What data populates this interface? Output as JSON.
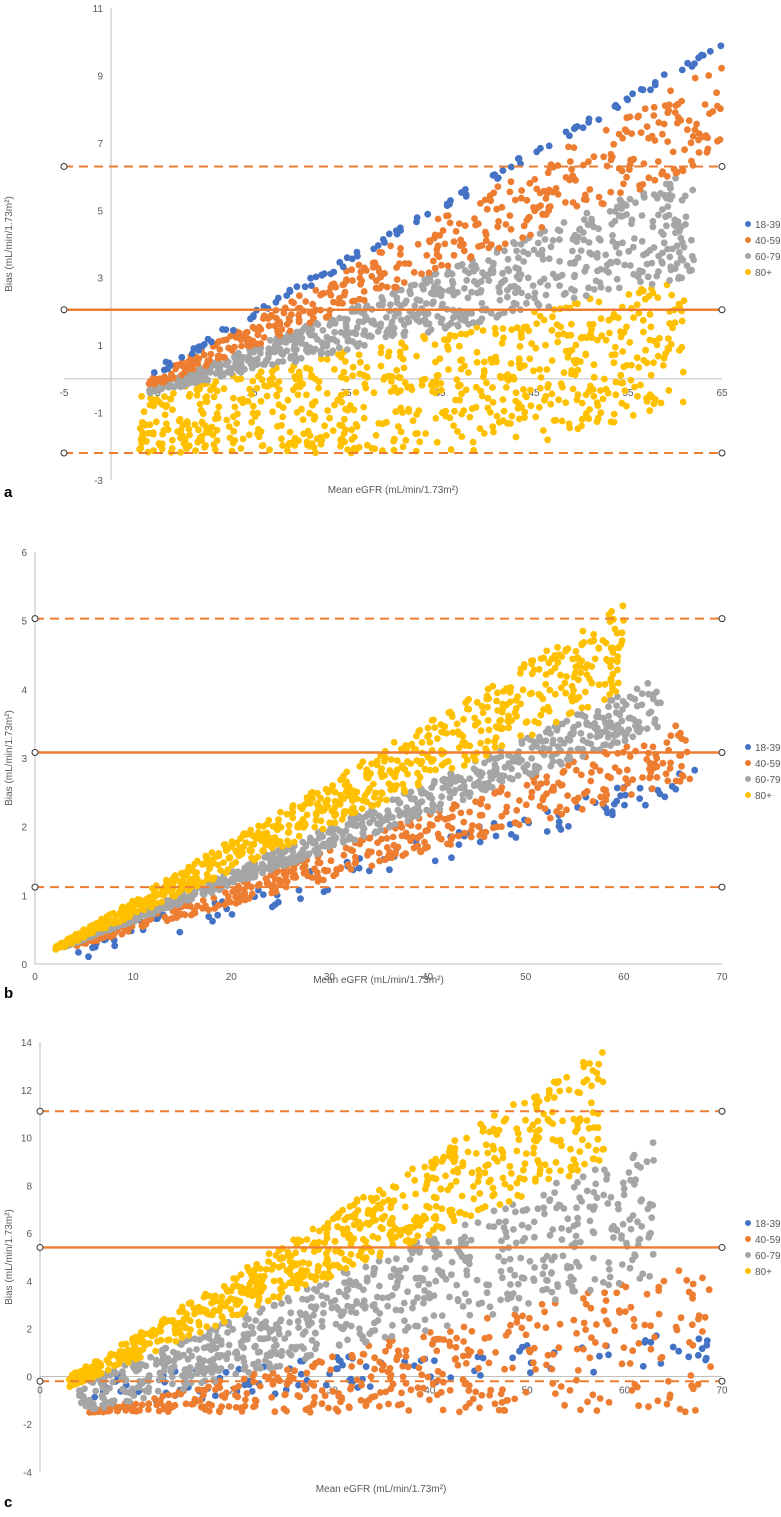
{
  "colors": {
    "s18_39": "#4472c4",
    "s40_59": "#ed7d31",
    "s60_79": "#a5a5a5",
    "s80": "#ffc000",
    "mean_line": "#ed7d31",
    "loa_line": "#ed7d31",
    "axis": "#bfbfbf",
    "text": "#595959"
  },
  "chart_data": [
    {
      "type": "scatter",
      "panel_label": "a",
      "xlabel": "Mean eGFR (mL/min/1.73m²)",
      "ylabel": "Bias (mL/min/1.73m²)",
      "xlim": [
        -5,
        65
      ],
      "ylim": [
        -3,
        11
      ],
      "xticks": [
        "-5",
        "5",
        "15",
        "25",
        "35",
        "45",
        "55",
        "65"
      ],
      "yticks": [
        "-3",
        "-1",
        "1",
        "3",
        "5",
        "7",
        "9",
        "11"
      ],
      "mean_bias": 2.05,
      "upper_loa": 6.3,
      "lower_loa": -2.2,
      "legend": [
        "18-39",
        "40-59",
        "60-79",
        "80+"
      ],
      "series": [
        {
          "name": "18-39",
          "x_range": [
            4,
            65
          ],
          "slope_ref": [
            [
              4,
              0.1
            ],
            [
              65,
              9.9
            ]
          ]
        },
        {
          "name": "40-59",
          "x_range": [
            4,
            65
          ],
          "slope_ref": [
            [
              4,
              0.0
            ],
            [
              65,
              9.4
            ]
          ]
        },
        {
          "name": "60-79",
          "x_range": [
            4,
            62
          ],
          "slope_ref": [
            [
              4,
              -0.3
            ],
            [
              62,
              6.2
            ]
          ]
        },
        {
          "name": "80+",
          "x_range": [
            3,
            61
          ],
          "slope_ref": [
            [
              3,
              -0.5
            ],
            [
              61,
              3.0
            ]
          ]
        }
      ]
    },
    {
      "type": "scatter",
      "panel_label": "b",
      "xlabel": "Mean eGFR  (mL/min/1.73m²)",
      "ylabel": "Bias (mL/min/1.73m²)",
      "xlim": [
        0,
        70
      ],
      "ylim": [
        0,
        6
      ],
      "xticks": [
        "0",
        "10",
        "20",
        "30",
        "40",
        "50",
        "60",
        "70"
      ],
      "yticks": [
        "0",
        "1",
        "2",
        "3",
        "4",
        "5",
        "6"
      ],
      "mean_bias": 3.08,
      "upper_loa": 5.03,
      "lower_loa": 1.12,
      "legend": [
        "18-39",
        "40-59",
        "60-79",
        "80+"
      ],
      "series": [
        {
          "name": "18-39",
          "x_range": [
            4,
            68
          ],
          "slope_ref": [
            [
              4,
              0.25
            ],
            [
              68,
              2.7
            ]
          ]
        },
        {
          "name": "40-59",
          "x_range": [
            4,
            67
          ],
          "slope_ref": [
            [
              4,
              0.3
            ],
            [
              67,
              3.6
            ]
          ]
        },
        {
          "name": "60-79",
          "x_range": [
            3,
            64
          ],
          "slope_ref": [
            [
              3,
              0.25
            ],
            [
              64,
              4.2
            ]
          ]
        },
        {
          "name": "80+",
          "x_range": [
            2,
            60
          ],
          "slope_ref": [
            [
              2,
              0.25
            ],
            [
              56,
              4.9
            ]
          ]
        }
      ]
    },
    {
      "type": "scatter",
      "panel_label": "c",
      "xlabel": "Mean eGFR  (mL/min/1.73m²)",
      "ylabel": "Bias (mL/min/1.73m²)",
      "xlim": [
        0,
        70
      ],
      "ylim": [
        -4,
        14
      ],
      "xticks": [
        "0",
        "10",
        "20",
        "30",
        "40",
        "50",
        "60",
        "70"
      ],
      "yticks": [
        "-4",
        "-2",
        "0",
        "2",
        "4",
        "6",
        "8",
        "10",
        "12",
        "14"
      ],
      "mean_bias": 5.4,
      "upper_loa": 11.1,
      "lower_loa": -0.2,
      "legend": [
        "18-39",
        "40-59",
        "60-79",
        "80+"
      ],
      "series": [
        {
          "name": "18-39",
          "x_range": [
            5,
            69
          ],
          "slope_ref": [
            [
              5,
              -0.6
            ],
            [
              69,
              1.2
            ]
          ]
        },
        {
          "name": "40-59",
          "x_range": [
            5,
            69
          ],
          "slope_ref": [
            [
              5,
              -1.5
            ],
            [
              69,
              4.8
            ]
          ]
        },
        {
          "name": "60-79",
          "x_range": [
            4,
            63
          ],
          "slope_ref": [
            [
              4,
              -0.3
            ],
            [
              58,
              9.0
            ]
          ]
        },
        {
          "name": "80+",
          "x_range": [
            3,
            58
          ],
          "slope_ref": [
            [
              3,
              0.0
            ],
            [
              52,
              12.3
            ]
          ]
        }
      ]
    }
  ]
}
